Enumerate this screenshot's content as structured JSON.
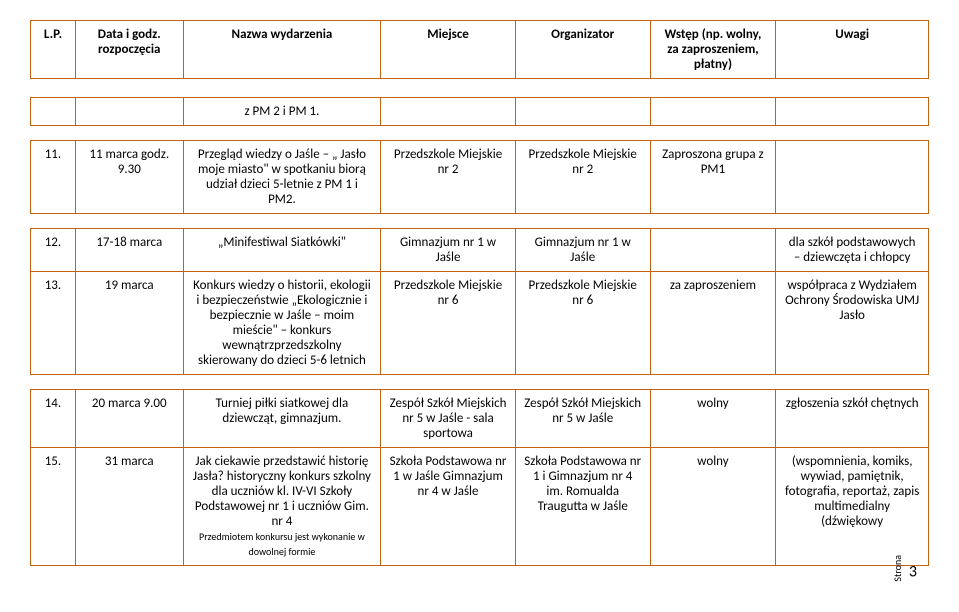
{
  "header": {
    "c1": "L.P.",
    "c2": "Data i godz. rozpoczęcia",
    "c3": "Nazwa wydarzenia",
    "c4": "Miejsce",
    "c5": "Organizator",
    "c6": "Wstęp (np. wolny, za zaproszeniem, płatny)",
    "c7": "Uwagi"
  },
  "row_top": {
    "c3": "z  PM 2 i  PM 1."
  },
  "r11": {
    "lp": "11.",
    "date": "11 marca godz. 9.30",
    "name": "Przegląd wiedzy o Jaśle – „ Jasło moje miasto\" w spotkaniu biorą udział dzieci 5-letnie z PM 1 i PM2.",
    "place": "Przedszkole Miejskie nr 2",
    "org": "Przedszkole Miejskie nr 2",
    "entry": "Zaproszona grupa z PM1",
    "notes": ""
  },
  "r12": {
    "lp": "12.",
    "date": "17-18 marca",
    "name": "„Minifestiwal Siatkówki\"",
    "place": "Gimnazjum nr 1 w Jaśle",
    "org": "Gimnazjum nr 1 w Jaśle",
    "entry": "",
    "notes": "dla szkół podstawowych – dziewczęta i chłopcy"
  },
  "r13": {
    "lp": "13.",
    "date": "19 marca",
    "name": "Konkurs  wiedzy  o historii, ekologii i bezpieczeństwie „Ekologicznie i bezpiecznie w Jaśle – moim mieście\" – konkurs wewnątrzprzedszkolny skierowany do dzieci 5-6 letnich",
    "place": "Przedszkole Miejskie nr 6",
    "org": "Przedszkole Miejskie nr 6",
    "entry": "za zaproszeniem",
    "notes": "współpraca \n z Wydziałem Ochrony Środowiska UMJ Jasło"
  },
  "r14": {
    "lp": "14.",
    "date": "20 marca 9.00",
    "name": "Turniej piłki siatkowej dla dziewcząt, gimnazjum.",
    "place": "Zespół Szkół Miejskich nr 5 w Jaśle - sala sportowa",
    "org": "Zespół Szkół Miejskich nr 5 w Jaśle",
    "entry": "wolny",
    "notes": "zgłoszenia szkół chętnych"
  },
  "r15": {
    "lp": "15.",
    "date": "31 marca",
    "name": "Jak ciekawie przedstawić historię Jasła? historyczny konkurs szkolny dla uczniów kl. IV-VI Szkoły Podstawowej nr 1 i uczniów Gim. nr 4",
    "name_small": "Przedmiotem konkursu jest wykonanie w dowolnej formie",
    "place": "Szkoła Podstawowa nr 1 w Jaśle Gimnazjum nr 4 w Jaśle",
    "org": "Szkoła Podstawowa nr 1\n i Gimnazjum nr 4 im. Romualda Traugutta w Jaśle",
    "entry": "wolny",
    "notes": "(wspomnienia, komiks, wywiad, pamiętnik, fotografia, reportaż, zapis multimedialny (dźwiękowy"
  },
  "page": {
    "strona": "Strona",
    "num": "3"
  }
}
